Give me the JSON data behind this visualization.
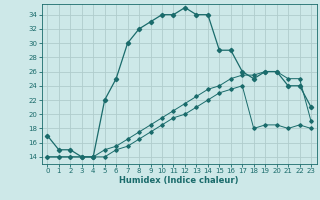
{
  "title": "",
  "xlabel": "Humidex (Indice chaleur)",
  "bg_color": "#cde8e8",
  "grid_color": "#b0cccc",
  "line_color": "#1a6b6b",
  "xlim": [
    -0.5,
    23.5
  ],
  "ylim": [
    13,
    35.5
  ],
  "xticks": [
    0,
    1,
    2,
    3,
    4,
    5,
    6,
    7,
    8,
    9,
    10,
    11,
    12,
    13,
    14,
    15,
    16,
    17,
    18,
    19,
    20,
    21,
    22,
    23
  ],
  "yticks": [
    14,
    16,
    18,
    20,
    22,
    24,
    26,
    28,
    30,
    32,
    34
  ],
  "line1_x": [
    0,
    1,
    2,
    3,
    4,
    5,
    6,
    7,
    8,
    9,
    10,
    11,
    12,
    13,
    14,
    15,
    16,
    17,
    18,
    19,
    20,
    21,
    22,
    23
  ],
  "line1_y": [
    17,
    15,
    15,
    14,
    14,
    22,
    25,
    30,
    32,
    33,
    34,
    34,
    35,
    34,
    34,
    29,
    29,
    26,
    25,
    26,
    26,
    24,
    24,
    21
  ],
  "line2_x": [
    0,
    1,
    2,
    3,
    4,
    5,
    6,
    7,
    8,
    9,
    10,
    11,
    12,
    13,
    14,
    15,
    16,
    17,
    18,
    19,
    20,
    21,
    22,
    23
  ],
  "line2_y": [
    14,
    14,
    14,
    14,
    14,
    15,
    15.5,
    16.5,
    17.5,
    18.5,
    19.5,
    20.5,
    21.5,
    22.5,
    23.5,
    24,
    25,
    25.5,
    25.5,
    26,
    26,
    25,
    25,
    19
  ],
  "line3_x": [
    0,
    1,
    2,
    3,
    4,
    5,
    6,
    7,
    8,
    9,
    10,
    11,
    12,
    13,
    14,
    15,
    16,
    17,
    18,
    19,
    20,
    21,
    22,
    23
  ],
  "line3_y": [
    14,
    14,
    14,
    14,
    14,
    14,
    15,
    15.5,
    16.5,
    17.5,
    18.5,
    19.5,
    20,
    21,
    22,
    23,
    23.5,
    24,
    18,
    18.5,
    18.5,
    18,
    18.5,
    18
  ]
}
